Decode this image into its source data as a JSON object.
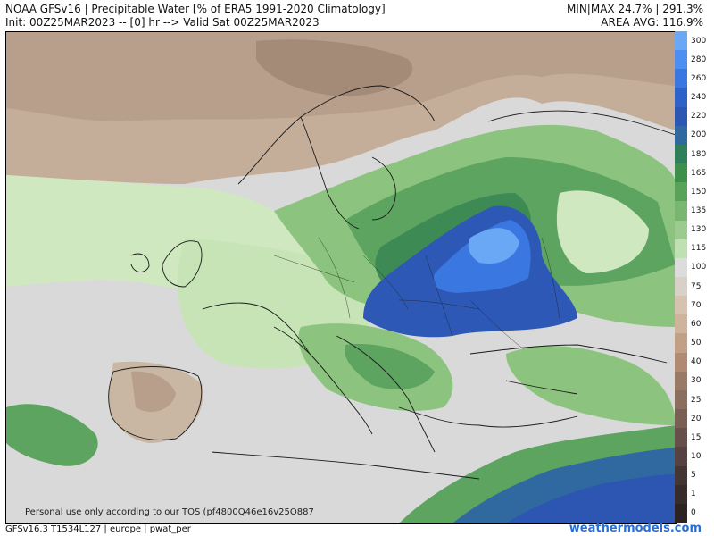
{
  "header": {
    "title_line1": "NOAA GFSv16 | Precipitable Water [% of ERA5 1991-2020 Climatology]",
    "title_line2": "Init: 00Z25MAR2023 -- [0] hr --> Valid Sat 00Z25MAR2023",
    "minmax": "MIN|MAX 24.7% | 291.3%",
    "area_avg": "AREA AVG: 116.9%"
  },
  "colorbar": {
    "labels": [
      "300",
      "280",
      "260",
      "240",
      "220",
      "200",
      "180",
      "165",
      "150",
      "135",
      "130",
      "115",
      "100",
      "75",
      "70",
      "60",
      "50",
      "40",
      "30",
      "25",
      "20",
      "15",
      "10",
      "5",
      "1",
      "0"
    ],
    "colors": [
      "#6aa8f5",
      "#4d8ff0",
      "#3a77e0",
      "#2f62c8",
      "#2d55b2",
      "#2f69a0",
      "#2f7f5a",
      "#3d8f4a",
      "#5aa25a",
      "#79b672",
      "#9ccb8f",
      "#bfe0b0",
      "#dcdcdc",
      "#d9d0c8",
      "#d6c2ae",
      "#cfb39a",
      "#c2a085",
      "#b08b72",
      "#9a7a66",
      "#8b6e5e",
      "#7a5f54",
      "#67504a",
      "#564240",
      "#463535",
      "#3a2b2b",
      "#2d2222"
    ]
  },
  "footer": {
    "left": "GFSv16.3 T1534L127 | europe | pwat_per",
    "right": "weathermodels.com",
    "tos": "Personal use only according to our TOS (pf4800Q46e16v25O887"
  }
}
